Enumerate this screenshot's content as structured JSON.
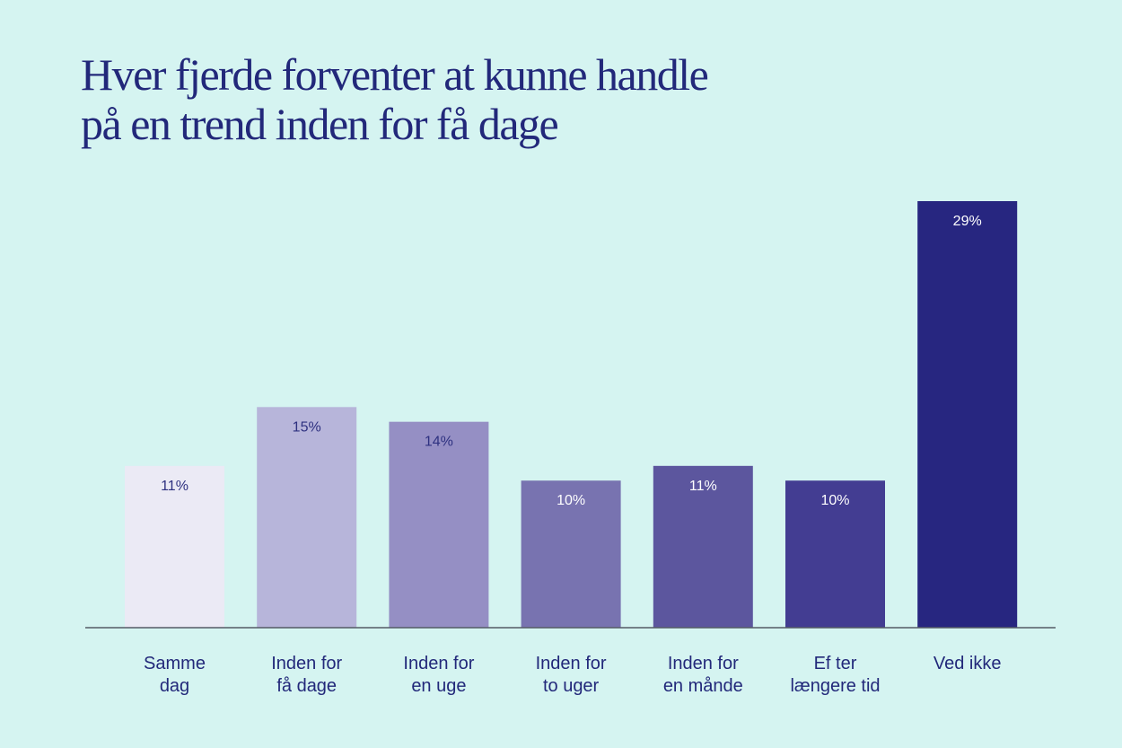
{
  "title_lines": [
    "Hver fjerde forventer at kunne handle",
    "på en trend inden for få dage"
  ],
  "colors": {
    "background": "#d5f4f1",
    "text": "#22287a",
    "axis": "#555b66"
  },
  "chart_data": {
    "type": "bar",
    "title": "Hver fjerde forventer at kunne handle på en trend inden for få dage",
    "xlabel": "",
    "ylabel": "",
    "ylim": [
      0,
      29
    ],
    "grid": false,
    "categories": [
      [
        "Samme",
        "dag"
      ],
      [
        "Inden for",
        "få dage"
      ],
      [
        "Inden for",
        "en uge"
      ],
      [
        "Inden for",
        "to uger"
      ],
      [
        "Inden for",
        "en månde"
      ],
      [
        "Ef ter",
        "længere tid"
      ],
      [
        "Ved ikke"
      ]
    ],
    "values": [
      11,
      15,
      14,
      10,
      11,
      10,
      29
    ],
    "data_labels": [
      "11%",
      "15%",
      "14%",
      "10%",
      "11%",
      "10%",
      "29%"
    ],
    "bar_colors": [
      "#ebeaf5",
      "#b7b5da",
      "#958fc4",
      "#7873b0",
      "#5c569e",
      "#433d92",
      "#272680"
    ],
    "label_colors": [
      "#2e3180",
      "#2e3180",
      "#2e3180",
      "#ffffff",
      "#ffffff",
      "#ffffff",
      "#ffffff"
    ]
  }
}
